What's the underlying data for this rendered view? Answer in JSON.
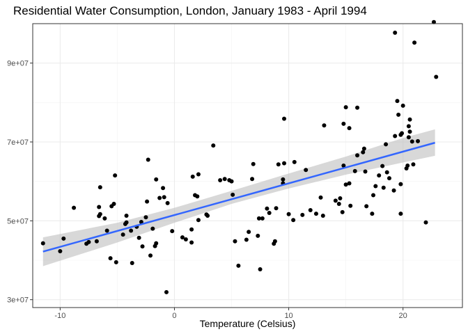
{
  "chart_data": {
    "type": "scatter",
    "title": "Residential Water Consumption, London, January 1983 - April 1994",
    "xlabel": "Temperature (Celsius)",
    "ylabel": "",
    "xlim": [
      -12.4,
      25.2
    ],
    "ylim": [
      28000000,
      100000000
    ],
    "x_ticks": [
      -10,
      0,
      10,
      20
    ],
    "x_tick_labels": [
      "-10",
      "0",
      "10",
      "20"
    ],
    "y_ticks": [
      30000000,
      50000000,
      70000000,
      90000000
    ],
    "y_tick_labels": [
      "3e+07",
      "5e+07",
      "7e+07",
      "9e+07"
    ],
    "grid": true,
    "colors": {
      "points": "#000000",
      "fit_line": "#3366ff",
      "confidence_band": "#bebebe",
      "grid_major": "#ebebeb",
      "panel_border": "#333333"
    },
    "fit": {
      "x": [
        -11.5,
        22.8
      ],
      "y": [
        42200000,
        69800000
      ]
    },
    "band": {
      "x": [
        -11.5,
        -5,
        0,
        5,
        10,
        15,
        20,
        22.8
      ],
      "lower": [
        38500000,
        44500000,
        49500000,
        54300000,
        58200000,
        61700000,
        64800000,
        66500000
      ],
      "upper": [
        45800000,
        49500000,
        53300000,
        57600000,
        62000000,
        66300000,
        71000000,
        73200000
      ]
    },
    "points": [
      [
        -11.5,
        44300000
      ],
      [
        -10,
        42300000
      ],
      [
        -9.7,
        45500000
      ],
      [
        -8.8,
        53300000
      ],
      [
        -7.7,
        44200000
      ],
      [
        -7.5,
        44600000
      ],
      [
        -6.8,
        44800000
      ],
      [
        -6.6,
        53500000
      ],
      [
        -6.6,
        51200000
      ],
      [
        -6.5,
        58500000
      ],
      [
        -6.5,
        51700000
      ],
      [
        -6.1,
        50600000
      ],
      [
        -5.9,
        47500000
      ],
      [
        -5.6,
        40500000
      ],
      [
        -5.5,
        53700000
      ],
      [
        -5.3,
        54300000
      ],
      [
        -5.2,
        61500000
      ],
      [
        -5.1,
        39500000
      ],
      [
        -4.5,
        46500000
      ],
      [
        -4.3,
        49200000
      ],
      [
        -4.2,
        49600000
      ],
      [
        -4.2,
        51300000
      ],
      [
        -3.8,
        47500000
      ],
      [
        -3.7,
        39300000
      ],
      [
        -3.3,
        48500000
      ],
      [
        -3.1,
        45700000
      ],
      [
        -2.9,
        49700000
      ],
      [
        -2.8,
        43500000
      ],
      [
        -2.5,
        50900000
      ],
      [
        -2.4,
        54900000
      ],
      [
        -2.3,
        65500000
      ],
      [
        -2.1,
        41200000
      ],
      [
        -1.9,
        48000000
      ],
      [
        -1.7,
        43600000
      ],
      [
        -1.6,
        44300000
      ],
      [
        -1.6,
        60500000
      ],
      [
        -1.3,
        55800000
      ],
      [
        -1.0,
        58300000
      ],
      [
        -0.9,
        56000000
      ],
      [
        -0.7,
        31900000
      ],
      [
        -0.6,
        54500000
      ],
      [
        -0.2,
        47400000
      ],
      [
        0.7,
        45800000
      ],
      [
        1.0,
        45300000
      ],
      [
        1.5,
        47800000
      ],
      [
        1.5,
        44500000
      ],
      [
        1.6,
        61200000
      ],
      [
        1.8,
        56500000
      ],
      [
        2.0,
        56200000
      ],
      [
        2.1,
        61800000
      ],
      [
        2.1,
        50200000
      ],
      [
        2.8,
        51600000
      ],
      [
        2.9,
        51300000
      ],
      [
        3.4,
        69100000
      ],
      [
        4.0,
        60300000
      ],
      [
        4.4,
        60600000
      ],
      [
        4.8,
        60300000
      ],
      [
        5.0,
        60000000
      ],
      [
        5.1,
        56600000
      ],
      [
        5.3,
        44800000
      ],
      [
        5.6,
        38600000
      ],
      [
        6.3,
        45200000
      ],
      [
        6.5,
        47200000
      ],
      [
        6.8,
        60600000
      ],
      [
        6.9,
        64400000
      ],
      [
        7.3,
        46200000
      ],
      [
        7.4,
        50600000
      ],
      [
        7.5,
        37700000
      ],
      [
        7.7,
        50600000
      ],
      [
        8.1,
        53100000
      ],
      [
        8.3,
        52000000
      ],
      [
        8.7,
        44200000
      ],
      [
        8.8,
        44800000
      ],
      [
        8.9,
        53200000
      ],
      [
        9.1,
        64300000
      ],
      [
        9.5,
        59500000
      ],
      [
        9.5,
        60500000
      ],
      [
        9.6,
        75900000
      ],
      [
        9.6,
        64600000
      ],
      [
        10.0,
        51700000
      ],
      [
        10.4,
        50200000
      ],
      [
        10.5,
        64900000
      ],
      [
        11.2,
        51500000
      ],
      [
        11.5,
        62900000
      ],
      [
        11.9,
        52700000
      ],
      [
        12.4,
        51800000
      ],
      [
        12.8,
        55900000
      ],
      [
        13.0,
        51300000
      ],
      [
        13.1,
        74200000
      ],
      [
        14.1,
        55100000
      ],
      [
        14.4,
        54300000
      ],
      [
        14.5,
        55700000
      ],
      [
        14.7,
        52200000
      ],
      [
        14.8,
        74600000
      ],
      [
        14.8,
        64000000
      ],
      [
        15.0,
        78800000
      ],
      [
        15.0,
        59200000
      ],
      [
        15.3,
        73500000
      ],
      [
        15.3,
        59500000
      ],
      [
        15.4,
        53800000
      ],
      [
        15.8,
        62600000
      ],
      [
        16.0,
        78700000
      ],
      [
        16.0,
        66600000
      ],
      [
        16.5,
        67400000
      ],
      [
        16.6,
        68300000
      ],
      [
        16.7,
        62500000
      ],
      [
        16.8,
        53700000
      ],
      [
        17.3,
        51800000
      ],
      [
        17.4,
        56500000
      ],
      [
        17.6,
        58800000
      ],
      [
        17.9,
        61500000
      ],
      [
        18.2,
        63900000
      ],
      [
        18.3,
        58400000
      ],
      [
        18.5,
        69400000
      ],
      [
        18.6,
        62300000
      ],
      [
        18.8,
        60800000
      ],
      [
        19.2,
        57700000
      ],
      [
        19.3,
        71500000
      ],
      [
        19.3,
        97700000
      ],
      [
        19.5,
        80400000
      ],
      [
        19.6,
        76900000
      ],
      [
        19.8,
        71800000
      ],
      [
        19.8,
        51800000
      ],
      [
        19.8,
        59300000
      ],
      [
        19.9,
        72200000
      ],
      [
        20.0,
        79200000
      ],
      [
        20.3,
        63300000
      ],
      [
        20.4,
        64000000
      ],
      [
        20.5,
        74000000
      ],
      [
        20.5,
        71200000
      ],
      [
        20.6,
        75700000
      ],
      [
        20.6,
        72600000
      ],
      [
        20.8,
        70100000
      ],
      [
        20.9,
        64300000
      ],
      [
        21.0,
        95200000
      ],
      [
        21.3,
        70200000
      ],
      [
        22.0,
        49600000
      ],
      [
        22.7,
        100400000
      ],
      [
        22.9,
        86500000
      ]
    ]
  }
}
